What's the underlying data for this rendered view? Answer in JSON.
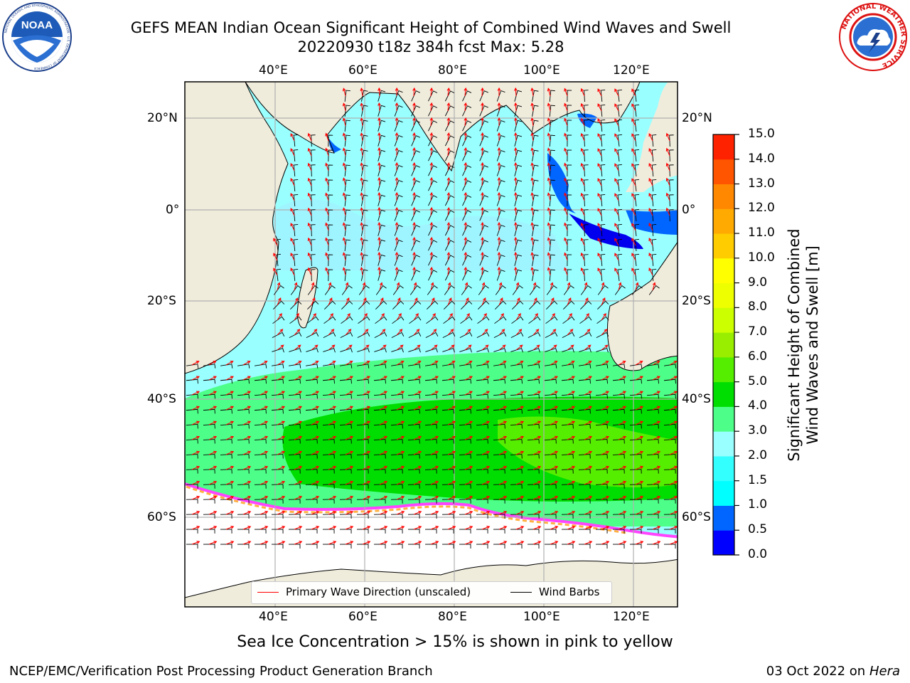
{
  "title": {
    "line1": "GEFS MEAN Indian Ocean Significant Height of Combined Wind Waves and Swell",
    "line2": "20220930 t18z 384h fcst   Max: 5.28"
  },
  "logos": {
    "left": {
      "name": "NOAA",
      "text": "NOAA",
      "ring_text": "NATIONAL OCEANIC AND ATMOSPHERIC ADMINISTRATION · U.S. DEPARTMENT OF COMMERCE"
    },
    "right": {
      "name": "National Weather Service",
      "ring_text": "NATIONAL WEATHER SERVICE"
    }
  },
  "map": {
    "region": "Indian Ocean",
    "lon_range": [
      20,
      130
    ],
    "lat_range": [
      -74,
      28
    ],
    "top_lon_labels": [
      "40°E",
      "60°E",
      "80°E",
      "100°E",
      "120°E"
    ],
    "bottom_lon_labels": [
      "40°E",
      "60°E",
      "80°E",
      "100°E",
      "120°E"
    ],
    "left_lat_labels": [
      "20°N",
      "0°",
      "20°S",
      "40°S",
      "60°S"
    ],
    "right_lat_labels": [
      "20°N",
      "0°",
      "20°S",
      "40°S",
      "60°S"
    ],
    "gridlines": true,
    "colors": {
      "land": "#efecdc",
      "wave_arrows": "#ff0000",
      "wind_barbs": "#000000",
      "ice_free": "#ffffff"
    }
  },
  "legend": {
    "location": "bottom-center",
    "entries": [
      {
        "label": "Primary Wave Direction (unscaled)",
        "color": "#ff0000"
      },
      {
        "label": "Wind Barbs",
        "color": "#000000"
      }
    ]
  },
  "colorbar": {
    "label_line1": "Significant Height of Combined",
    "label_line2": "Wind Waves and Swell [m]",
    "ticks": [
      "0.0",
      "0.5",
      "1.0",
      "1.5",
      "2.0",
      "3.0",
      "4.0",
      "5.0",
      "6.0",
      "7.0",
      "8.0",
      "9.0",
      "10.0",
      "11.0",
      "12.0",
      "13.0",
      "14.0",
      "15.0"
    ],
    "colors": [
      "#0000ff",
      "#0066ff",
      "#00ffff",
      "#33ffff",
      "#99ffff",
      "#4dff88",
      "#00dd00",
      "#55ee00",
      "#99ee00",
      "#ccff00",
      "#eeff00",
      "#ffff00",
      "#ffcc00",
      "#ffaa00",
      "#ff8800",
      "#ff5500",
      "#ff2200",
      "#ff0000"
    ]
  },
  "subtitle": "Sea Ice Concentration > 15% is shown in pink to yellow",
  "footer": {
    "left": "NCEP/EMC/Verification Post Processing Product Generation Branch",
    "right_prefix": "03 Oct 2022 on ",
    "right_system": "Hera"
  }
}
